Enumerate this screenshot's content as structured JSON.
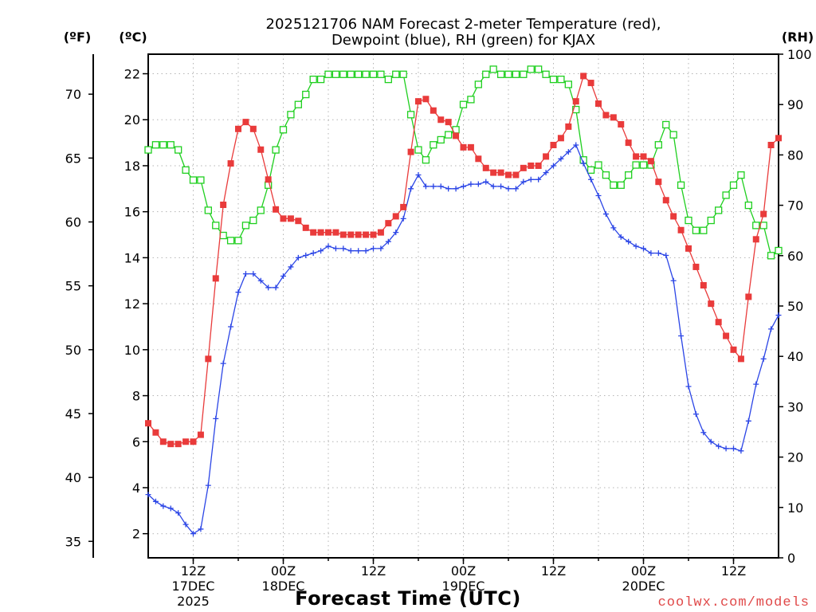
{
  "chart_data": {
    "type": "line",
    "title": [
      "2025121706 NAM Forecast 2-meter Temperature (red),",
      "Dewpoint (blue), RH (green) for KJAX"
    ],
    "xlabel": "Forecast Time (UTC)",
    "grid": true,
    "xlim": [
      "2025-12-17T06:00Z",
      "2025-12-20T18:00Z"
    ],
    "xticks": [
      {
        "t": "2025-12-17T12:00Z",
        "label": [
          "12Z",
          "17DEC",
          "2025"
        ]
      },
      {
        "t": "2025-12-18T00:00Z",
        "label": [
          "00Z",
          "18DEC"
        ]
      },
      {
        "t": "2025-12-18T12:00Z",
        "label": [
          "12Z"
        ]
      },
      {
        "t": "2025-12-19T00:00Z",
        "label": [
          "00Z",
          "19DEC"
        ]
      },
      {
        "t": "2025-12-19T12:00Z",
        "label": [
          "12Z"
        ]
      },
      {
        "t": "2025-12-20T00:00Z",
        "label": [
          "00Z",
          "20DEC"
        ]
      },
      {
        "t": "2025-12-20T12:00Z",
        "label": [
          "12Z"
        ]
      }
    ],
    "x": [
      "2025-12-17T06:00Z",
      "2025-12-17T07:00Z",
      "2025-12-17T08:00Z",
      "2025-12-17T09:00Z",
      "2025-12-17T10:00Z",
      "2025-12-17T11:00Z",
      "2025-12-17T12:00Z",
      "2025-12-17T13:00Z",
      "2025-12-17T14:00Z",
      "2025-12-17T15:00Z",
      "2025-12-17T16:00Z",
      "2025-12-17T17:00Z",
      "2025-12-17T18:00Z",
      "2025-12-17T19:00Z",
      "2025-12-17T20:00Z",
      "2025-12-17T21:00Z",
      "2025-12-17T22:00Z",
      "2025-12-17T23:00Z",
      "2025-12-18T00:00Z",
      "2025-12-18T01:00Z",
      "2025-12-18T02:00Z",
      "2025-12-18T03:00Z",
      "2025-12-18T04:00Z",
      "2025-12-18T05:00Z",
      "2025-12-18T06:00Z",
      "2025-12-18T07:00Z",
      "2025-12-18T08:00Z",
      "2025-12-18T09:00Z",
      "2025-12-18T10:00Z",
      "2025-12-18T11:00Z",
      "2025-12-18T12:00Z",
      "2025-12-18T13:00Z",
      "2025-12-18T14:00Z",
      "2025-12-18T15:00Z",
      "2025-12-18T16:00Z",
      "2025-12-18T17:00Z",
      "2025-12-18T18:00Z",
      "2025-12-18T19:00Z",
      "2025-12-18T20:00Z",
      "2025-12-18T21:00Z",
      "2025-12-18T22:00Z",
      "2025-12-18T23:00Z",
      "2025-12-19T00:00Z",
      "2025-12-19T01:00Z",
      "2025-12-19T02:00Z",
      "2025-12-19T03:00Z",
      "2025-12-19T04:00Z",
      "2025-12-19T05:00Z",
      "2025-12-19T06:00Z",
      "2025-12-19T07:00Z",
      "2025-12-19T08:00Z",
      "2025-12-19T09:00Z",
      "2025-12-19T10:00Z",
      "2025-12-19T11:00Z",
      "2025-12-19T12:00Z",
      "2025-12-19T13:00Z",
      "2025-12-19T14:00Z",
      "2025-12-19T15:00Z",
      "2025-12-19T16:00Z",
      "2025-12-19T17:00Z",
      "2025-12-19T18:00Z",
      "2025-12-19T19:00Z",
      "2025-12-19T20:00Z",
      "2025-12-19T21:00Z",
      "2025-12-19T22:00Z",
      "2025-12-19T23:00Z",
      "2025-12-20T00:00Z",
      "2025-12-20T01:00Z",
      "2025-12-20T02:00Z",
      "2025-12-20T03:00Z",
      "2025-12-20T04:00Z",
      "2025-12-20T05:00Z",
      "2025-12-20T06:00Z",
      "2025-12-20T07:00Z",
      "2025-12-20T08:00Z",
      "2025-12-20T09:00Z",
      "2025-12-20T10:00Z",
      "2025-12-20T11:00Z",
      "2025-12-20T12:00Z",
      "2025-12-20T13:00Z",
      "2025-12-20T14:00Z",
      "2025-12-20T15:00Z",
      "2025-12-20T16:00Z",
      "2025-12-20T17:00Z",
      "2025-12-20T18:00Z"
    ],
    "celsius_axis": {
      "label": "(ºC)",
      "range": [
        0.95,
        22.85
      ],
      "ticks": [
        2,
        4,
        6,
        8,
        10,
        12,
        14,
        16,
        18,
        20,
        22
      ],
      "series": [
        {
          "color": "#e93b3b",
          "values": [
            6.8,
            6.4,
            6.0,
            5.9,
            5.9,
            6.0,
            6.0,
            6.3,
            9.6,
            13.1,
            16.3,
            18.1,
            19.6,
            19.9,
            19.6,
            18.7,
            17.4,
            16.1,
            15.7,
            15.7,
            15.6,
            15.3,
            15.1,
            15.1,
            15.1,
            15.1,
            15.0,
            15.0,
            15.0,
            15.0,
            15.0,
            15.1,
            15.5,
            15.8,
            16.2,
            18.6,
            20.8,
            20.9,
            20.4,
            20.0,
            19.9,
            19.3,
            18.8,
            18.8,
            18.3,
            17.9,
            17.7,
            17.7,
            17.6,
            17.6,
            17.9,
            18.0,
            18.0,
            18.4,
            18.9,
            19.2,
            19.7,
            20.8,
            21.9,
            21.6,
            20.7,
            20.2,
            20.1,
            19.8,
            19.0,
            18.4,
            18.4,
            18.2,
            17.3,
            16.5,
            15.8,
            15.2,
            14.4,
            13.6,
            12.8,
            12.0,
            11.2,
            10.6,
            10.0,
            9.6,
            12.3,
            14.8,
            15.9,
            18.9,
            19.2
          ]
        },
        {
          "color": "#2b45e6",
          "values": [
            3.7,
            3.4,
            3.2,
            3.1,
            2.9,
            2.4,
            2.0,
            2.2,
            4.1,
            7.0,
            9.4,
            11.0,
            12.5,
            13.3,
            13.3,
            13.0,
            12.7,
            12.7,
            13.2,
            13.6,
            14.0,
            14.1,
            14.2,
            14.3,
            14.5,
            14.4,
            14.4,
            14.3,
            14.3,
            14.3,
            14.4,
            14.4,
            14.7,
            15.1,
            15.7,
            17.0,
            17.6,
            17.1,
            17.1,
            17.1,
            17.0,
            17.0,
            17.1,
            17.2,
            17.2,
            17.3,
            17.1,
            17.1,
            17.0,
            17.0,
            17.3,
            17.4,
            17.4,
            17.7,
            18.0,
            18.3,
            18.6,
            18.9,
            18.1,
            17.4,
            16.7,
            15.9,
            15.3,
            14.9,
            14.7,
            14.5,
            14.4,
            14.2,
            14.2,
            14.1,
            13.0,
            10.6,
            8.4,
            7.2,
            6.4,
            6.0,
            5.8,
            5.7,
            5.7,
            5.6,
            6.9,
            8.5,
            9.6,
            10.9,
            11.5
          ]
        }
      ]
    },
    "fahrenheit_axis": {
      "label": "(ºF)",
      "ticks": [
        35,
        40,
        45,
        50,
        55,
        60,
        65,
        70
      ]
    },
    "rh_axis": {
      "label": "(RH)",
      "range": [
        0,
        100
      ],
      "ticks": [
        0,
        10,
        20,
        30,
        40,
        50,
        60,
        70,
        80,
        90,
        100
      ],
      "series": [
        {
          "color": "#1fcf1f",
          "values": [
            81,
            82,
            82,
            82,
            81,
            77,
            75,
            75,
            69,
            66,
            64,
            63,
            63,
            66,
            67,
            69,
            74,
            81,
            85,
            88,
            90,
            92,
            95,
            95,
            96,
            96,
            96,
            96,
            96,
            96,
            96,
            96,
            95,
            96,
            96,
            88,
            81,
            79,
            82,
            83,
            84,
            85,
            90,
            91,
            94,
            96,
            97,
            96,
            96,
            96,
            96,
            97,
            97,
            96,
            95,
            95,
            94,
            89,
            79,
            77,
            78,
            76,
            74,
            74,
            76,
            78,
            78,
            78,
            82,
            86,
            84,
            74,
            67,
            65,
            65,
            67,
            69,
            72,
            74,
            76,
            70,
            66,
            66,
            60,
            61
          ]
        }
      ]
    }
  },
  "credit": "coolwx.com/models"
}
